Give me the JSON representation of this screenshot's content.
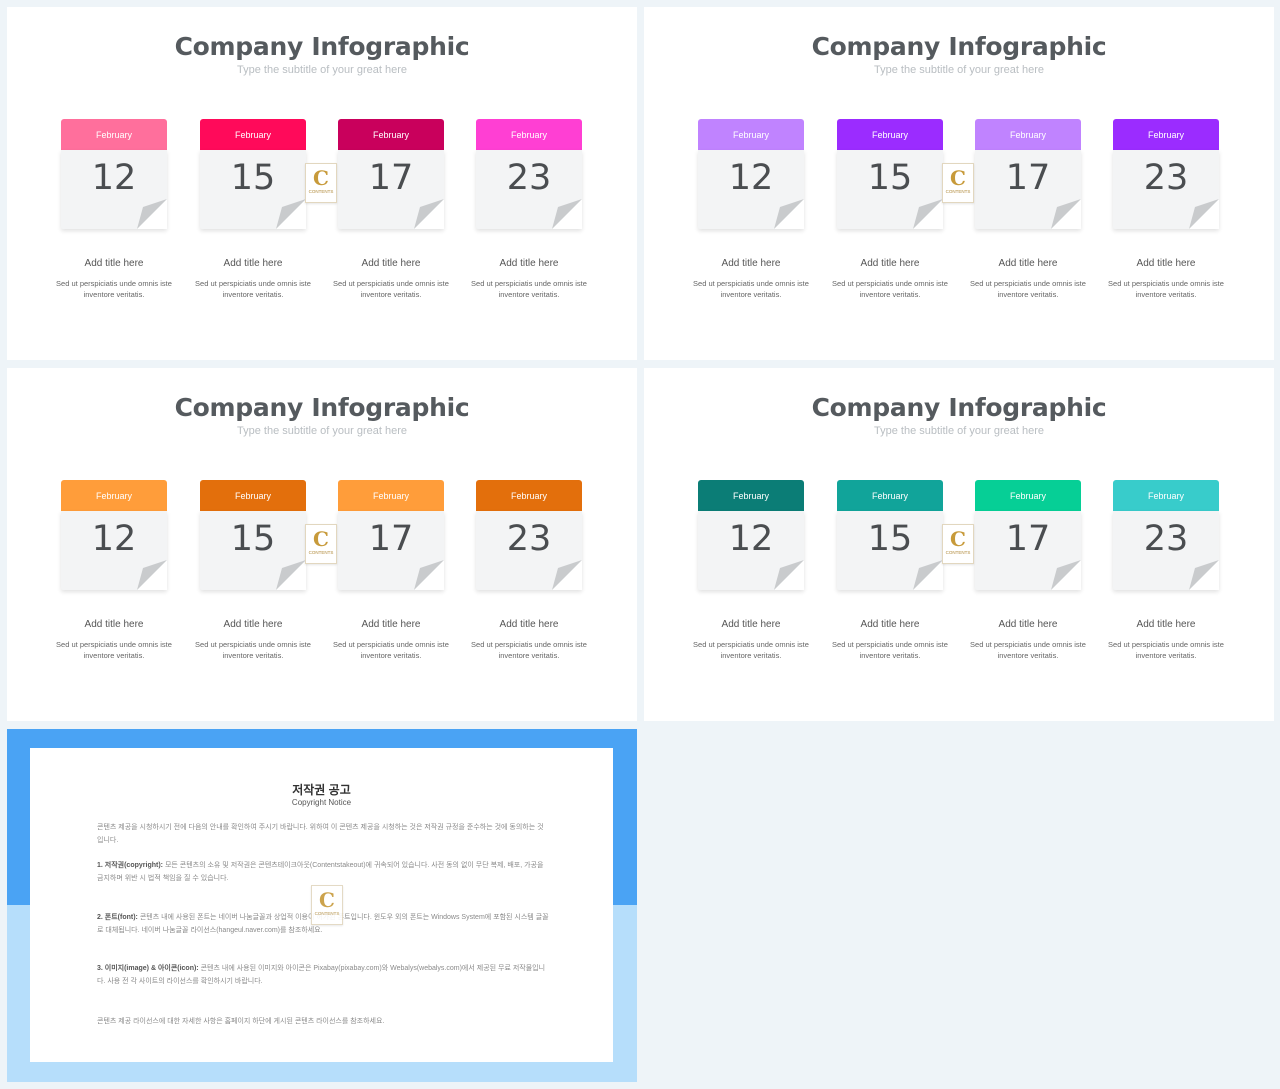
{
  "slides": [
    {
      "title": "Company Infographic",
      "subtitle": "Type the subtitle of your great here",
      "colors": [
        "#ff6f9c",
        "#ff0a5a",
        "#c9005c",
        "#ff3fd3"
      ],
      "cards": [
        {
          "month": "February",
          "day": "12",
          "title": "Add title here",
          "desc": "Sed ut perspiciatis unde omnis iste inventore veritatis."
        },
        {
          "month": "February",
          "day": "15",
          "title": "Add title here",
          "desc": "Sed ut perspiciatis unde omnis iste inventore veritatis."
        },
        {
          "month": "February",
          "day": "17",
          "title": "Add title here",
          "desc": "Sed ut perspiciatis unde omnis iste inventore veritatis."
        },
        {
          "month": "February",
          "day": "23",
          "title": "Add title here",
          "desc": "Sed ut perspiciatis unde omnis iste inventore veritatis."
        }
      ]
    },
    {
      "title": "Company Infographic",
      "subtitle": "Type the subtitle of your great here",
      "colors": [
        "#c083ff",
        "#9b2cff",
        "#c083ff",
        "#9b2cff"
      ],
      "cards": [
        {
          "month": "February",
          "day": "12",
          "title": "Add title here",
          "desc": "Sed ut perspiciatis unde omnis iste inventore veritatis."
        },
        {
          "month": "February",
          "day": "15",
          "title": "Add title here",
          "desc": "Sed ut perspiciatis unde omnis iste inventore veritatis."
        },
        {
          "month": "February",
          "day": "17",
          "title": "Add title here",
          "desc": "Sed ut perspiciatis unde omnis iste inventore veritatis."
        },
        {
          "month": "February",
          "day": "23",
          "title": "Add title here",
          "desc": "Sed ut perspiciatis unde omnis iste inventore veritatis."
        }
      ]
    },
    {
      "title": "Company Infographic",
      "subtitle": "Type the subtitle of your great here",
      "colors": [
        "#ff9d3a",
        "#e36f0c",
        "#ff9d3a",
        "#e36f0c"
      ],
      "cards": [
        {
          "month": "February",
          "day": "12",
          "title": "Add title here",
          "desc": "Sed ut perspiciatis unde omnis iste inventore veritatis."
        },
        {
          "month": "February",
          "day": "15",
          "title": "Add title here",
          "desc": "Sed ut perspiciatis unde omnis iste inventore veritatis."
        },
        {
          "month": "February",
          "day": "17",
          "title": "Add title here",
          "desc": "Sed ut perspiciatis unde omnis iste inventore veritatis."
        },
        {
          "month": "February",
          "day": "23",
          "title": "Add title here",
          "desc": "Sed ut perspiciatis unde omnis iste inventore veritatis."
        }
      ]
    },
    {
      "title": "Company Infographic",
      "subtitle": "Type the subtitle of your great here",
      "colors": [
        "#0b7d76",
        "#11a49a",
        "#06cf96",
        "#38cccb"
      ],
      "cards": [
        {
          "month": "February",
          "day": "12",
          "title": "Add title here",
          "desc": "Sed ut perspiciatis unde omnis iste inventore veritatis."
        },
        {
          "month": "February",
          "day": "15",
          "title": "Add title here",
          "desc": "Sed ut perspiciatis unde omnis iste inventore veritatis."
        },
        {
          "month": "February",
          "day": "17",
          "title": "Add title here",
          "desc": "Sed ut perspiciatis unde omnis iste inventore veritatis."
        },
        {
          "month": "February",
          "day": "23",
          "title": "Add title here",
          "desc": "Sed ut perspiciatis unde omnis iste inventore veritatis."
        }
      ]
    }
  ],
  "logo": {
    "letter": "C",
    "text": "CONTENTS"
  },
  "copyright": {
    "title": "저작권 공고",
    "subtitle": "Copyright Notice",
    "intro": "콘텐츠 제공을 시청하시기 전에 다음의 안내를 확인하여 주시기 바랍니다. 위하여 이 콘텐츠 제공을 시청하는 것은 저작권 규정을 준수하는 것에 동의하는 것입니다.",
    "p1_label": "1. 저작권(copyright):",
    "p1": "모든 콘텐츠의 소유 및 저작권은 콘텐츠테이크아웃(Contentstakeout)에 귀속되어 있습니다. 사전 동의 없이 무단 복제, 배포, 가공을 금지하며 위반 시 법적 책임을 질 수 있습니다.",
    "p2_label": "2. 폰트(font):",
    "p2": "콘텐츠 내에 사용된 폰트는 네이버 나눔글꼴과 상업적 이용이 허가된 폰트입니다. 윈도우 외의 폰트는 Windows System에 포함된 시스템 글꼴로 대체됩니다. 네이버 나눔글꼴 라이선스(hangeul.naver.com)를 참조하세요.",
    "p3_label": "3. 이미지(image) & 아이콘(icon):",
    "p3": "콘텐츠 내에 사용된 이미지와 아이콘은 Pixabay(pixabay.com)와 Webalys(webalys.com)에서 제공된 무료 저작물입니다. 사용 전 각 사이트의 라이선스를 확인하시기 바랍니다.",
    "outro": "콘텐츠 제공 라이선스에 대한 자세한 사항은 홈페이지 하단에 게시된 콘텐츠 라이선스를 참조하세요."
  }
}
